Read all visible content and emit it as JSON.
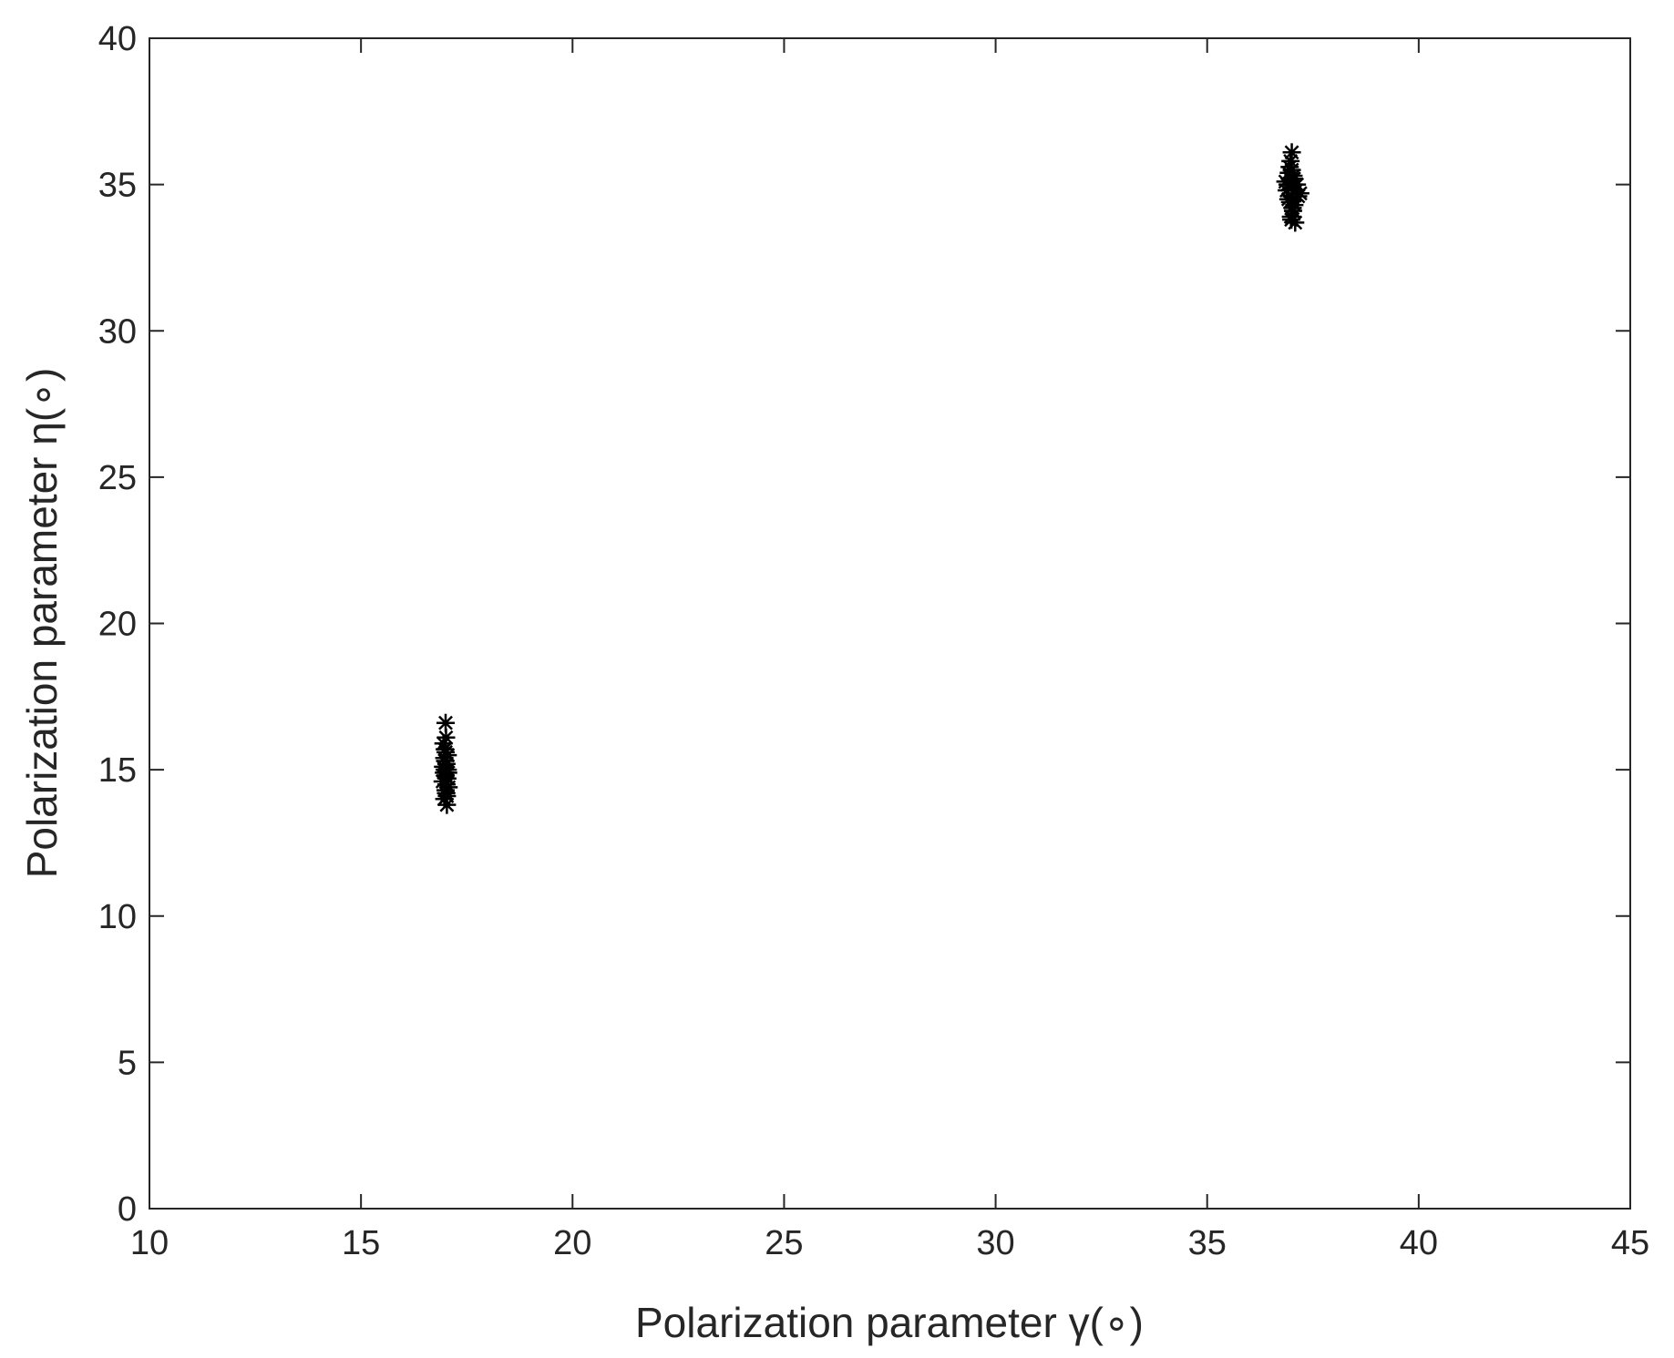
{
  "chart_data": {
    "type": "scatter",
    "xlabel": "Polarization parameter γ(∘)",
    "ylabel": "Polarization parameter η(∘)",
    "xlim": [
      10,
      45
    ],
    "ylim": [
      0,
      40
    ],
    "xticks": [
      10,
      15,
      20,
      25,
      30,
      35,
      40,
      45
    ],
    "yticks": [
      0,
      5,
      10,
      15,
      20,
      25,
      30,
      35,
      40
    ],
    "grid": false,
    "series": [
      {
        "color": "#000000",
        "marker": "asterisk",
        "x": [
          17.0,
          16.95,
          17.05,
          17.02,
          16.98,
          17.0,
          16.93,
          17.07,
          17.01,
          16.97,
          17.03,
          17.0,
          16.96,
          17.04,
          16.99,
          17.02,
          16.94,
          17.06,
          17.0,
          16.98,
          17.01,
          17.03,
          16.97,
          17.0,
          17.05,
          37.0,
          36.95,
          37.05,
          37.1,
          36.9,
          37.0,
          37.2,
          36.85,
          37.02,
          36.98,
          37.08,
          36.93,
          37.0,
          37.04,
          36.96,
          37.12,
          36.88,
          37.0,
          37.03,
          36.97,
          37.15,
          36.92,
          37.0,
          37.06,
          36.99
        ],
        "values": [
          16.6,
          15.9,
          15.5,
          15.2,
          15.0,
          14.8,
          14.6,
          14.4,
          14.2,
          14.0,
          13.8,
          15.6,
          14.9,
          14.7,
          15.3,
          14.5,
          15.1,
          14.9,
          14.3,
          15.7,
          16.1,
          14.1,
          15.4,
          14.9,
          15.0,
          36.1,
          35.6,
          35.2,
          34.8,
          35.0,
          34.6,
          34.7,
          35.1,
          34.2,
          33.9,
          33.7,
          35.4,
          34.9,
          35.3,
          34.4,
          35.0,
          34.8,
          35.5,
          34.1,
          35.8,
          34.6,
          34.5,
          35.0,
          34.3,
          33.8
        ]
      }
    ]
  }
}
